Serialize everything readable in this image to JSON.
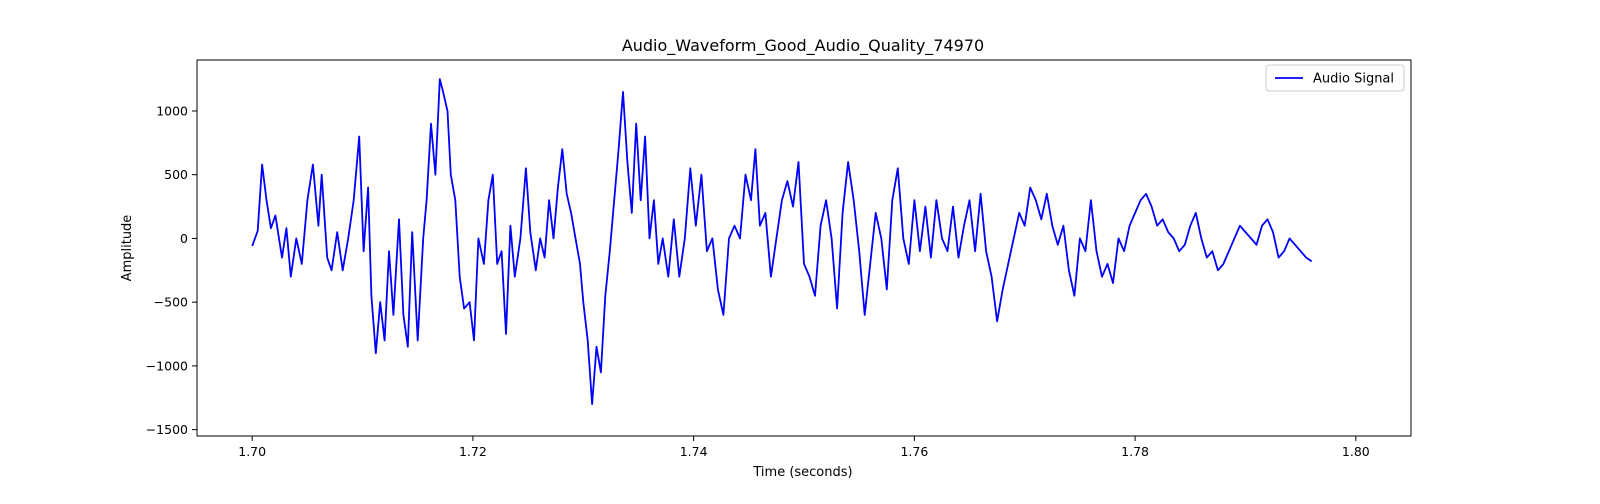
{
  "chart_data": {
    "type": "line",
    "title": "Audio_Waveform_Good_Audio_Quality_74970",
    "xlabel": "Time (seconds)",
    "ylabel": "Amplitude",
    "xlim": [
      1.695,
      1.805
    ],
    "ylim": [
      -1550,
      1400
    ],
    "x_ticks": [
      1.7,
      1.72,
      1.74,
      1.76,
      1.78,
      1.8
    ],
    "x_tick_labels": [
      "1.70",
      "1.72",
      "1.74",
      "1.76",
      "1.78",
      "1.80"
    ],
    "y_ticks": [
      -1500,
      -1000,
      -500,
      0,
      500,
      1000
    ],
    "y_tick_labels": [
      "−1500",
      "−1000",
      "−500",
      "0",
      "500",
      "1000"
    ],
    "grid": false,
    "legend": {
      "placement": "top-right",
      "entries": [
        "Audio Signal"
      ]
    },
    "series": [
      {
        "name": "Audio Signal",
        "color": "#0000ff",
        "points": [
          [
            1.7,
            -60
          ],
          [
            1.7005,
            60
          ],
          [
            1.7009,
            580
          ],
          [
            1.7013,
            300
          ],
          [
            1.7017,
            80
          ],
          [
            1.7021,
            180
          ],
          [
            1.7027,
            -150
          ],
          [
            1.7031,
            80
          ],
          [
            1.7035,
            -300
          ],
          [
            1.704,
            0
          ],
          [
            1.7045,
            -200
          ],
          [
            1.705,
            300
          ],
          [
            1.7055,
            580
          ],
          [
            1.706,
            100
          ],
          [
            1.7063,
            500
          ],
          [
            1.7068,
            -150
          ],
          [
            1.7072,
            -250
          ],
          [
            1.7077,
            50
          ],
          [
            1.7082,
            -250
          ],
          [
            1.7087,
            0
          ],
          [
            1.7092,
            300
          ],
          [
            1.7097,
            800
          ],
          [
            1.7101,
            -100
          ],
          [
            1.7105,
            400
          ],
          [
            1.7108,
            -450
          ],
          [
            1.7112,
            -900
          ],
          [
            1.7116,
            -500
          ],
          [
            1.712,
            -800
          ],
          [
            1.7124,
            -100
          ],
          [
            1.7128,
            -600
          ],
          [
            1.7133,
            150
          ],
          [
            1.7137,
            -600
          ],
          [
            1.7141,
            -850
          ],
          [
            1.7145,
            50
          ],
          [
            1.715,
            -800
          ],
          [
            1.7155,
            0
          ],
          [
            1.7158,
            300
          ],
          [
            1.7162,
            900
          ],
          [
            1.7166,
            500
          ],
          [
            1.717,
            1250
          ],
          [
            1.7173,
            1150
          ],
          [
            1.7177,
            1000
          ],
          [
            1.718,
            500
          ],
          [
            1.7184,
            300
          ],
          [
            1.7188,
            -300
          ],
          [
            1.7192,
            -550
          ],
          [
            1.7197,
            -500
          ],
          [
            1.7201,
            -800
          ],
          [
            1.7205,
            0
          ],
          [
            1.721,
            -200
          ],
          [
            1.7214,
            300
          ],
          [
            1.7218,
            500
          ],
          [
            1.7222,
            -200
          ],
          [
            1.7226,
            -100
          ],
          [
            1.723,
            -750
          ],
          [
            1.7234,
            100
          ],
          [
            1.7238,
            -300
          ],
          [
            1.7243,
            0
          ],
          [
            1.7248,
            550
          ],
          [
            1.7252,
            50
          ],
          [
            1.7257,
            -250
          ],
          [
            1.7261,
            0
          ],
          [
            1.7265,
            -150
          ],
          [
            1.7269,
            300
          ],
          [
            1.7273,
            0
          ],
          [
            1.7277,
            400
          ],
          [
            1.7281,
            700
          ],
          [
            1.7285,
            350
          ],
          [
            1.7289,
            200
          ],
          [
            1.7293,
            0
          ],
          [
            1.7297,
            -200
          ],
          [
            1.73,
            -500
          ],
          [
            1.7304,
            -800
          ],
          [
            1.7308,
            -1300
          ],
          [
            1.7312,
            -850
          ],
          [
            1.7316,
            -1050
          ],
          [
            1.732,
            -450
          ],
          [
            1.7324,
            -100
          ],
          [
            1.7328,
            300
          ],
          [
            1.7332,
            700
          ],
          [
            1.7336,
            1150
          ],
          [
            1.734,
            600
          ],
          [
            1.7344,
            200
          ],
          [
            1.7348,
            900
          ],
          [
            1.7352,
            300
          ],
          [
            1.7356,
            800
          ],
          [
            1.736,
            0
          ],
          [
            1.7364,
            300
          ],
          [
            1.7368,
            -200
          ],
          [
            1.7372,
            0
          ],
          [
            1.7377,
            -300
          ],
          [
            1.7382,
            150
          ],
          [
            1.7387,
            -300
          ],
          [
            1.7392,
            0
          ],
          [
            1.7397,
            550
          ],
          [
            1.7402,
            100
          ],
          [
            1.7407,
            500
          ],
          [
            1.7412,
            -100
          ],
          [
            1.7417,
            0
          ],
          [
            1.7422,
            -400
          ],
          [
            1.7427,
            -600
          ],
          [
            1.7432,
            0
          ],
          [
            1.7437,
            100
          ],
          [
            1.7442,
            0
          ],
          [
            1.7447,
            500
          ],
          [
            1.7452,
            300
          ],
          [
            1.7456,
            700
          ],
          [
            1.746,
            100
          ],
          [
            1.7465,
            200
          ],
          [
            1.747,
            -300
          ],
          [
            1.7475,
            0
          ],
          [
            1.748,
            300
          ],
          [
            1.7485,
            450
          ],
          [
            1.749,
            250
          ],
          [
            1.7495,
            600
          ],
          [
            1.75,
            -200
          ],
          [
            1.7505,
            -300
          ],
          [
            1.751,
            -450
          ],
          [
            1.7515,
            100
          ],
          [
            1.752,
            300
          ],
          [
            1.7525,
            0
          ],
          [
            1.753,
            -550
          ],
          [
            1.7535,
            200
          ],
          [
            1.754,
            600
          ],
          [
            1.7545,
            300
          ],
          [
            1.755,
            -100
          ],
          [
            1.7555,
            -600
          ],
          [
            1.756,
            -200
          ],
          [
            1.7565,
            200
          ],
          [
            1.757,
            0
          ],
          [
            1.7575,
            -400
          ],
          [
            1.758,
            300
          ],
          [
            1.7585,
            550
          ],
          [
            1.759,
            0
          ],
          [
            1.7595,
            -200
          ],
          [
            1.76,
            300
          ],
          [
            1.7605,
            -100
          ],
          [
            1.761,
            250
          ],
          [
            1.7615,
            -150
          ],
          [
            1.762,
            300
          ],
          [
            1.7625,
            0
          ],
          [
            1.763,
            -100
          ],
          [
            1.7635,
            250
          ],
          [
            1.764,
            -150
          ],
          [
            1.7645,
            100
          ],
          [
            1.765,
            300
          ],
          [
            1.7655,
            -100
          ],
          [
            1.766,
            350
          ],
          [
            1.7665,
            -100
          ],
          [
            1.767,
            -300
          ],
          [
            1.7675,
            -650
          ],
          [
            1.768,
            -400
          ],
          [
            1.7685,
            -200
          ],
          [
            1.769,
            0
          ],
          [
            1.7695,
            200
          ],
          [
            1.77,
            100
          ],
          [
            1.7705,
            400
          ],
          [
            1.771,
            300
          ],
          [
            1.7715,
            150
          ],
          [
            1.772,
            350
          ],
          [
            1.7725,
            100
          ],
          [
            1.773,
            -50
          ],
          [
            1.7735,
            100
          ],
          [
            1.774,
            -250
          ],
          [
            1.7745,
            -450
          ],
          [
            1.775,
            0
          ],
          [
            1.7755,
            -100
          ],
          [
            1.776,
            300
          ],
          [
            1.7765,
            -100
          ],
          [
            1.777,
            -300
          ],
          [
            1.7775,
            -200
          ],
          [
            1.778,
            -350
          ],
          [
            1.7785,
            0
          ],
          [
            1.779,
            -100
          ],
          [
            1.7795,
            100
          ],
          [
            1.78,
            200
          ],
          [
            1.7805,
            300
          ],
          [
            1.781,
            350
          ],
          [
            1.7815,
            250
          ],
          [
            1.782,
            100
          ],
          [
            1.7825,
            150
          ],
          [
            1.783,
            50
          ],
          [
            1.7835,
            0
          ],
          [
            1.784,
            -100
          ],
          [
            1.7845,
            -50
          ],
          [
            1.785,
            100
          ],
          [
            1.7855,
            200
          ],
          [
            1.786,
            0
          ],
          [
            1.7865,
            -150
          ],
          [
            1.787,
            -100
          ],
          [
            1.7875,
            -250
          ],
          [
            1.788,
            -200
          ],
          [
            1.7885,
            -100
          ],
          [
            1.789,
            0
          ],
          [
            1.7895,
            100
          ],
          [
            1.79,
            50
          ],
          [
            1.7905,
            0
          ],
          [
            1.791,
            -50
          ],
          [
            1.7915,
            100
          ],
          [
            1.792,
            150
          ],
          [
            1.7925,
            50
          ],
          [
            1.793,
            -150
          ],
          [
            1.7935,
            -100
          ],
          [
            1.794,
            0
          ],
          [
            1.7945,
            -50
          ],
          [
            1.795,
            -100
          ],
          [
            1.7955,
            -150
          ],
          [
            1.796,
            -180
          ]
        ]
      }
    ]
  }
}
